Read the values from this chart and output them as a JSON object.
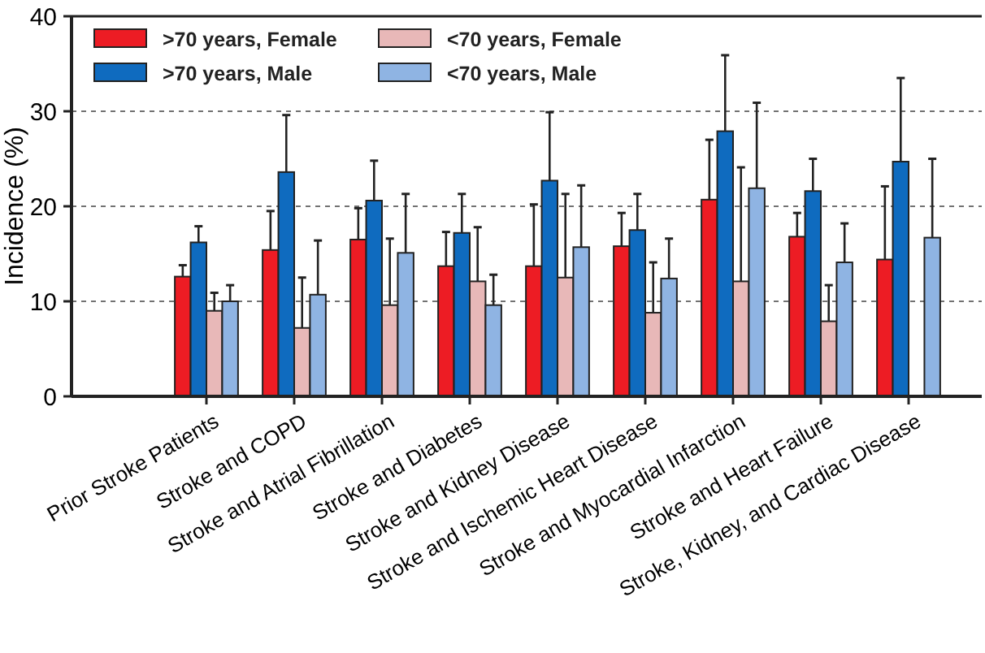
{
  "chart_data": {
    "type": "bar",
    "ylabel": "Incidence (%)",
    "categories": [
      "Prior Stroke Patients",
      "Stroke and COPD",
      "Stroke and Atrial Fibrillation",
      "Stroke and Diabetes",
      "Stroke and Kidney Disease",
      "Stroke and Ischemic Heart Disease",
      "Stroke and Myocardial Infarction",
      "Stroke and Heart Failure",
      "Stroke, Kidney, and Cardiac Disease"
    ],
    "series": [
      {
        "name": ">70 years, Female",
        "color": "#ed1c24",
        "values": [
          12.6,
          15.4,
          16.5,
          13.7,
          13.7,
          15.8,
          20.7,
          16.8,
          14.4
        ],
        "errors": [
          [
            12.6,
            13.8
          ],
          [
            15.4,
            19.5
          ],
          [
            16.5,
            19.8
          ],
          [
            13.7,
            17.3
          ],
          [
            13.7,
            20.2
          ],
          [
            15.8,
            19.3
          ],
          [
            20.7,
            27.0
          ],
          [
            16.8,
            19.3
          ],
          [
            14.4,
            22.1
          ]
        ]
      },
      {
        "name": ">70 years, Male",
        "color": "#0f6bbf",
        "values": [
          16.2,
          23.6,
          20.6,
          17.2,
          22.7,
          17.5,
          27.9,
          21.6,
          24.7
        ],
        "errors": [
          [
            16.2,
            17.9
          ],
          [
            23.6,
            29.6
          ],
          [
            20.6,
            24.8
          ],
          [
            17.2,
            21.3
          ],
          [
            22.7,
            29.9
          ],
          [
            17.5,
            21.3
          ],
          [
            27.9,
            35.9
          ],
          [
            21.6,
            25.0
          ],
          [
            24.7,
            33.5
          ]
        ]
      },
      {
        "name": "<70 years, Female",
        "color": "#e8b8b8",
        "values": [
          9.0,
          7.2,
          9.6,
          12.1,
          12.5,
          8.8,
          12.1,
          7.9,
          null
        ],
        "errors": [
          [
            9.0,
            10.9
          ],
          [
            7.2,
            12.5
          ],
          [
            9.6,
            16.6
          ],
          [
            12.1,
            17.8
          ],
          [
            12.5,
            21.3
          ],
          [
            8.8,
            14.1
          ],
          [
            12.1,
            24.1
          ],
          [
            7.9,
            11.7
          ],
          null
        ]
      },
      {
        "name": "<70 years, Male",
        "color": "#8fb4e3",
        "values": [
          10.0,
          10.7,
          15.1,
          9.6,
          15.7,
          12.4,
          21.9,
          14.1,
          16.7
        ],
        "errors": [
          [
            10.0,
            11.7
          ],
          [
            10.7,
            16.4
          ],
          [
            15.1,
            21.3
          ],
          [
            9.6,
            12.8
          ],
          [
            15.7,
            22.2
          ],
          [
            12.4,
            16.6
          ],
          [
            21.9,
            30.9
          ],
          [
            14.1,
            18.2
          ],
          [
            16.7,
            25.0
          ]
        ]
      }
    ],
    "ylim": [
      0,
      40
    ],
    "yticks": [
      0,
      10,
      20,
      30,
      40
    ],
    "grid": "y",
    "legend": "top left"
  }
}
